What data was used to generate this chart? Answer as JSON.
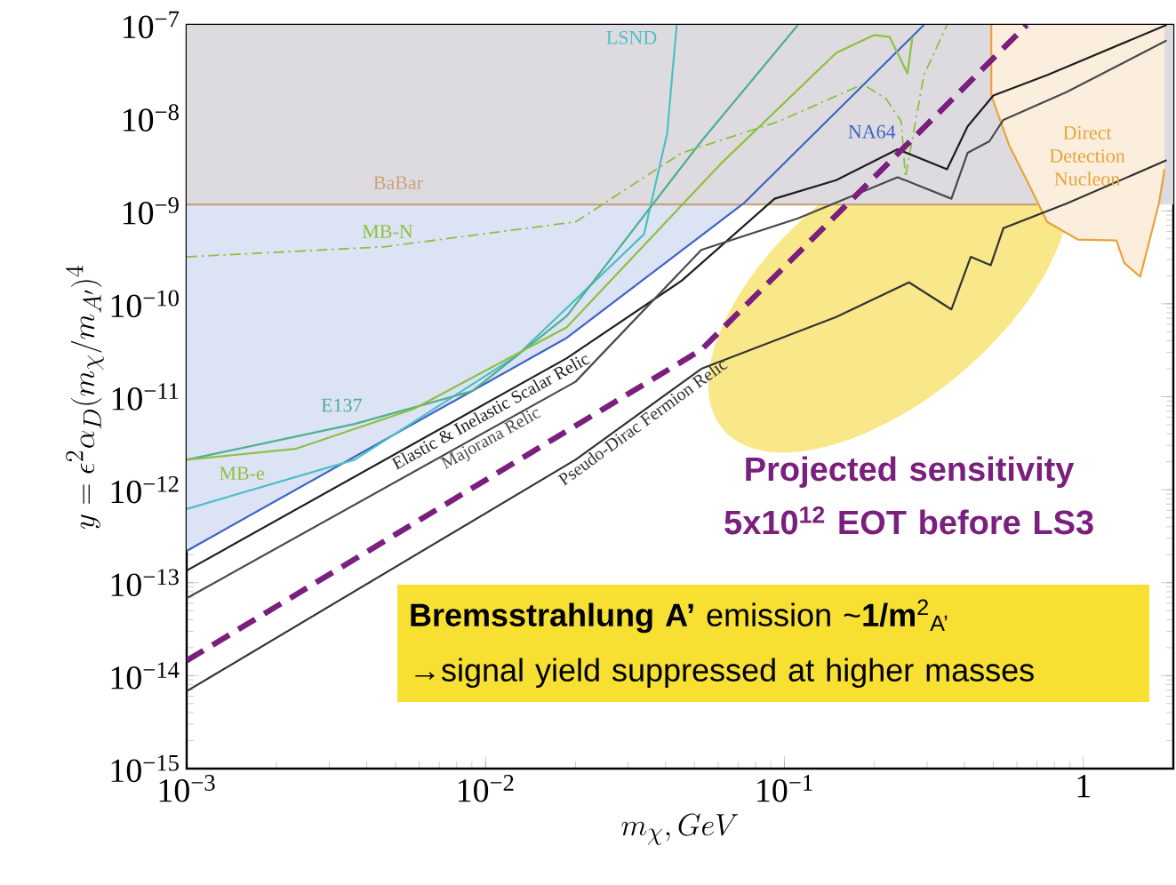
{
  "chart_data": {
    "type": "line",
    "xlabel": "m_\\chi, GeV",
    "ylabel": "y = \\epsilon^2\\alpha_D(m_\\chi/m_{A'})^4",
    "log": "xy",
    "xlim": [
      0.001,
      2
    ],
    "ylim": [
      1e-15,
      1e-07
    ],
    "xticks": [
      {
        "value": 0.001,
        "label": "10$^{−3}$"
      },
      {
        "value": 0.01,
        "label": "10$^{−2}$"
      },
      {
        "value": 0.1,
        "label": "10$^{−1}$"
      },
      1
    ],
    "yticks": [
      {
        "value": 1e-15,
        "label": "10$^{−15}$"
      },
      {
        "value": 1e-14,
        "label": "10$^{−14}$"
      },
      {
        "value": 1e-13,
        "label": "10$^{−13}$"
      },
      {
        "value": 1e-12,
        "label": "10$^{−12}$"
      },
      {
        "value": 1e-11,
        "label": "10$^{−11}$"
      },
      {
        "value": 1e-10,
        "label": "10$^{−10}$"
      },
      {
        "value": 1e-09,
        "label": "10$^{−9}$"
      },
      {
        "value": 1e-08,
        "label": "10$^{−8}$"
      },
      {
        "value": 1e-07,
        "label": "10$^{−7}$"
      }
    ],
    "bands": [
      {
        "axis": "y",
        "from": 1.17e-09,
        "to": 1e-07,
        "color": "#dedbe0"
      }
    ],
    "series": [
      {
        "name": "BaBar",
        "color": "#c9a27c",
        "x": [
          0.001,
          0.7
        ],
        "values": [
          1.17e-09,
          1.17e-09
        ]
      },
      {
        "name": "NA64",
        "color": "#3d63c4",
        "x": [
          0.001,
          0.0187,
          0.073,
          0.293
        ],
        "values": [
          2.2e-13,
          4.3e-11,
          1.2e-09,
          1e-07
        ],
        "lower": [
          2.2e-13,
          4.3e-11,
          1.2e-09,
          1e-07
        ],
        "upper": [
          1.17e-09,
          1.17e-09,
          1.2e-09,
          1e-07
        ]
      },
      {
        "name": "LSND",
        "color": "#4bbfc7",
        "x": [
          0.001,
          0.00365,
          0.0127,
          0.0339,
          0.0405,
          0.0436
        ],
        "values": [
          6.2e-13,
          2.1e-12,
          2.75e-11,
          5.6e-10,
          6.8e-09,
          1e-07
        ]
      },
      {
        "name": "E137",
        "color": "#4fae90",
        "x": [
          0.001,
          0.00365,
          0.00903,
          0.0187,
          0.0527,
          0.111
        ],
        "values": [
          2.1e-12,
          5.1e-12,
          1.15e-11,
          7.4e-11,
          5.6e-09,
          1e-07
        ]
      },
      {
        "name": "MB-e",
        "color": "#8dc03f",
        "x": [
          0.001,
          0.00231,
          0.00575,
          0.0187,
          0.0612,
          0.149,
          0.2,
          0.225,
          0.258,
          0.268
        ],
        "values": [
          2.1e-12,
          2.75e-12,
          7.4e-12,
          5.6e-11,
          3.2e-09,
          5e-08,
          7.8e-08,
          7.4e-08,
          3e-08,
          7.4e-08
        ]
      },
      {
        "name": "MB-N",
        "color": "#8dc03f",
        "line_style": "dashdot",
        "x": [
          0.001,
          0.00457,
          0.02,
          0.0454,
          0.0953,
          0.183,
          0.219,
          0.246,
          0.254,
          0.293,
          0.35
        ],
        "values": [
          3.2e-10,
          4.1e-10,
          7.6e-10,
          4.2e-09,
          9.1e-09,
          2.3e-08,
          1.6e-08,
          9.1e-09,
          2.3e-09,
          2.9e-08,
          1e-07
        ]
      },
      {
        "name": "Direct Detection Nucleon",
        "color": "#e8a33c",
        "x": [
          0.492,
          0.492,
          0.564,
          0.656,
          0.757,
          0.96,
          1.29,
          1.37,
          1.55,
          1.79,
          1.87
        ],
        "values": [
          1e-07,
          1.74e-08,
          5.1e-09,
          1.95e-09,
          7.6e-10,
          4.9e-10,
          4.8e-10,
          2.75e-10,
          1.95e-10,
          1.2e-09,
          2.8e-09
        ],
        "lower": [
          1e-07,
          1.74e-08,
          5.1e-09,
          1.95e-09,
          7.6e-10,
          4.9e-10,
          4.8e-10,
          2.75e-10,
          1.95e-10,
          1.2e-09,
          2.8e-09
        ],
        "upper": [
          1e-07,
          1e-07,
          1e-07,
          1e-07,
          1e-07,
          1e-07,
          1e-07,
          1e-07,
          1e-07,
          1e-07,
          1e-07
        ]
      },
      {
        "name": "Elastic & Inelastic Scalar Relic",
        "color": "#1e1e1e",
        "x": [
          0.001,
          0.0187,
          0.0454,
          0.0927,
          0.149,
          0.239,
          0.35,
          0.41,
          0.5,
          0.76,
          1.9
        ],
        "values": [
          1.35e-13,
          2.6e-11,
          1.78e-10,
          1.35e-09,
          2.14e-09,
          4.6e-09,
          2.8e-09,
          8.1e-09,
          1.74e-08,
          2.9e-08,
          1e-07
        ]
      },
      {
        "name": "Majorana Relic",
        "color": "#4a4a4a",
        "x": [
          0.001,
          0.02,
          0.0527,
          0.111,
          0.239,
          0.362,
          0.41,
          0.485,
          0.54,
          0.88,
          1.9
        ],
        "values": [
          6.8e-14,
          1.45e-11,
          3.8e-10,
          8.3e-10,
          2.3e-09,
          1.35e-09,
          4.2e-09,
          5.6e-09,
          9.5e-09,
          1.9e-08,
          6.8e-08
        ]
      },
      {
        "name": "Pseudo-Dirac Fermion Relic",
        "color": "#333333",
        "x": [
          0.001,
          0.02,
          0.0527,
          0.149,
          0.261,
          0.362,
          0.42,
          0.49,
          0.54,
          0.88,
          1.9
        ],
        "values": [
          6.8e-15,
          2.1e-12,
          2e-11,
          7.2e-11,
          1.7e-10,
          8.7e-11,
          3.2e-10,
          2.6e-10,
          6.5e-10,
          1.2e-09,
          3.5e-09
        ]
      },
      {
        "name": "Projected sensitivity 5x10$^{12}$ EOT before LS3",
        "color": "#7b1f7e",
        "line_style": "dashed",
        "x": [
          0.001,
          0.0527,
          0.647
        ],
        "values": [
          1.45e-14,
          3.2e-11,
          1e-07
        ]
      }
    ],
    "annotations": [
      "**Bremsstrahlung A’** emission ~**1/m**$^{2}$$_{A’}$",
      "→signal yield suppressed at higher masses"
    ],
    "grid": false
  }
}
